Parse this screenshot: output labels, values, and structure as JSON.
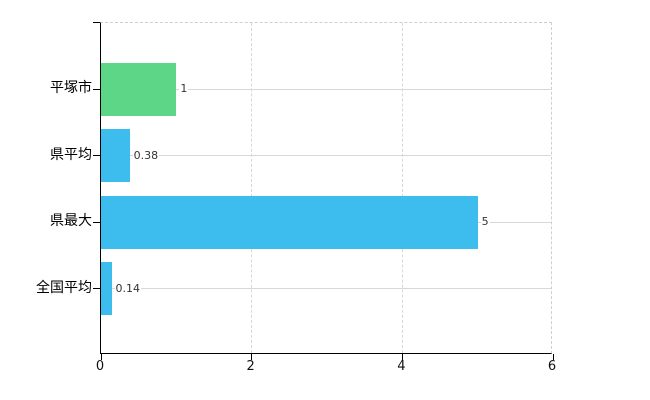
{
  "chart_data": {
    "type": "bar",
    "orientation": "horizontal",
    "title": "",
    "categories": [
      "平塚市",
      "県平均",
      "県最大",
      "全国平均"
    ],
    "values": [
      1,
      0.38,
      5,
      0.14
    ],
    "value_labels": [
      "1",
      "0.38",
      "5",
      "0.14"
    ],
    "bar_colors": [
      "#5ed687",
      "#3cbdee",
      "#3cbdee",
      "#3cbdee"
    ],
    "xlim": [
      0,
      6
    ],
    "x_ticks": [
      0,
      2,
      4,
      6
    ],
    "x_tick_labels": [
      "0",
      "2",
      "4",
      "6"
    ],
    "grid": true,
    "legend": false,
    "xlabel": "",
    "ylabel": "",
    "colors": {
      "background": "#ffffff",
      "grid_line": "#d3d9d3",
      "axis_line": "#000000",
      "border_dashed": "#cfcfcf",
      "value_text": "#333333",
      "category_text": "#000000",
      "green_bar": "#5ed687",
      "blue_bar": "#3cbdee"
    }
  }
}
